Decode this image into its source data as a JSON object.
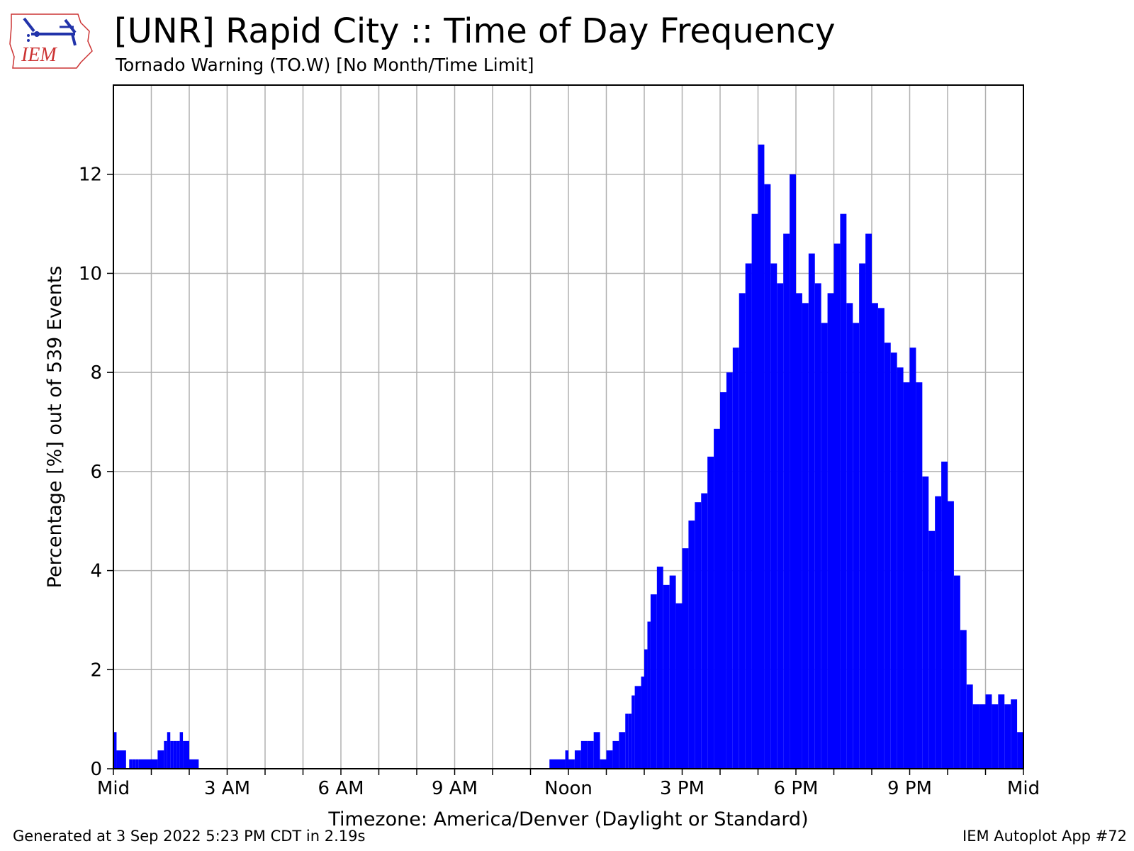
{
  "header": {
    "logo_text": "IEM",
    "title": "[UNR] Rapid City :: Time of Day Frequency",
    "subtitle": "Tornado Warning (TO.W) [No Month/Time Limit]"
  },
  "footer": {
    "generated": "Generated at 3 Sep 2022 5:23 PM CDT in 2.19s",
    "app": "IEM Autoplot App #72"
  },
  "colors": {
    "bar": "#0000ff",
    "grid": "#b0b0b0",
    "axis": "#000000"
  },
  "chart_data": {
    "type": "bar",
    "title": "[UNR] Rapid City :: Time of Day Frequency",
    "subtitle": "Tornado Warning (TO.W) [No Month/Time Limit]",
    "xlabel": "Timezone: America/Denver (Daylight or Standard)",
    "ylabel": "Percentage [%] out of 539 Events",
    "xlim": [
      0,
      1440
    ],
    "ylim": [
      0,
      13.8
    ],
    "grid": true,
    "x_major_ticks": [
      0,
      180,
      360,
      540,
      720,
      900,
      1080,
      1260,
      1440
    ],
    "x_tick_labels": [
      "Mid",
      "3 AM",
      "6 AM",
      "9 AM",
      "Noon",
      "3 PM",
      "6 PM",
      "9 PM",
      "Mid"
    ],
    "x_grid": [
      0,
      60,
      120,
      180,
      240,
      300,
      360,
      420,
      480,
      540,
      600,
      660,
      720,
      780,
      840,
      900,
      960,
      1020,
      1080,
      1140,
      1200,
      1260,
      1320,
      1380,
      1440
    ],
    "y_ticks": [
      0,
      2,
      4,
      6,
      8,
      10,
      12
    ],
    "y_tick_labels": [
      "0",
      "2",
      "4",
      "6",
      "8",
      "10",
      "12"
    ],
    "bin_minutes": 5,
    "series": [
      {
        "x": [
          0,
          5,
          20,
          25,
          30,
          35,
          40,
          70,
          80,
          85,
          90,
          95,
          100,
          105,
          110,
          120,
          135,
          690,
          715,
          720,
          730,
          740,
          750,
          760,
          770,
          780,
          790,
          800,
          810,
          815,
          820,
          825,
          835,
          840,
          845,
          850,
          860,
          870,
          880,
          890,
          900,
          910,
          920,
          930,
          940,
          950,
          960,
          970,
          980,
          990,
          1000,
          1010,
          1020,
          1030,
          1040,
          1050,
          1060,
          1070,
          1080,
          1090,
          1100,
          1110,
          1120,
          1130,
          1140,
          1150,
          1160,
          1170,
          1180,
          1190,
          1200,
          1210,
          1220,
          1230,
          1240,
          1250,
          1260,
          1270,
          1280,
          1290,
          1300,
          1310,
          1320,
          1330,
          1340,
          1350,
          1360,
          1370,
          1380,
          1390,
          1400,
          1410,
          1420,
          1430
        ],
        "values": [
          0.74,
          0.37,
          0.0,
          0.19,
          0.19,
          0.19,
          0.19,
          0.37,
          0.56,
          0.74,
          0.56,
          0.56,
          0.56,
          0.74,
          0.56,
          0.19,
          0.0,
          0.19,
          0.37,
          0.19,
          0.37,
          0.56,
          0.56,
          0.74,
          0.19,
          0.37,
          0.56,
          0.74,
          1.11,
          1.11,
          1.48,
          1.67,
          1.86,
          2.41,
          2.97,
          3.52,
          4.08,
          3.71,
          3.9,
          3.34,
          4.45,
          5.01,
          5.38,
          5.56,
          6.3,
          6.86,
          7.6,
          8.0,
          8.5,
          9.6,
          10.2,
          11.2,
          12.6,
          11.8,
          10.2,
          9.8,
          10.8,
          12.0,
          9.6,
          9.4,
          10.4,
          9.8,
          9.0,
          9.6,
          10.6,
          11.2,
          9.4,
          9.0,
          10.2,
          10.8,
          9.4,
          9.3,
          8.6,
          8.4,
          8.1,
          7.8,
          8.5,
          7.8,
          5.9,
          4.8,
          5.5,
          6.2,
          5.4,
          3.9,
          2.8,
          1.7,
          1.3,
          1.3,
          1.5,
          1.3,
          1.5,
          1.3,
          1.4,
          0.74
        ]
      }
    ]
  }
}
